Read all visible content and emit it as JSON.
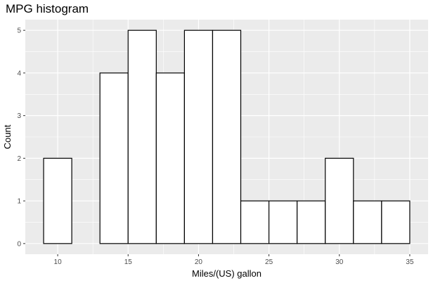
{
  "chart_data": {
    "type": "bar",
    "title": "MPG histogram",
    "xlabel": "Miles/(US) gallon",
    "ylabel": "Count",
    "bin_edges": [
      9,
      11,
      13,
      15,
      17,
      19,
      21,
      23,
      25,
      27,
      29,
      31,
      33,
      35
    ],
    "values": [
      2,
      0,
      4,
      5,
      4,
      5,
      5,
      1,
      1,
      1,
      2,
      1,
      1
    ],
    "xlim": [
      7.7,
      36.3
    ],
    "ylim": [
      -0.25,
      5.25
    ],
    "x_ticks": [
      10,
      15,
      20,
      25,
      30,
      35
    ],
    "y_ticks": [
      0,
      1,
      2,
      3,
      4,
      5
    ],
    "grid": true,
    "colors": {
      "panel_background": "#ebebeb",
      "grid_major": "#ffffff",
      "bar_fill": "#ffffff",
      "bar_outline": "#000000"
    }
  }
}
